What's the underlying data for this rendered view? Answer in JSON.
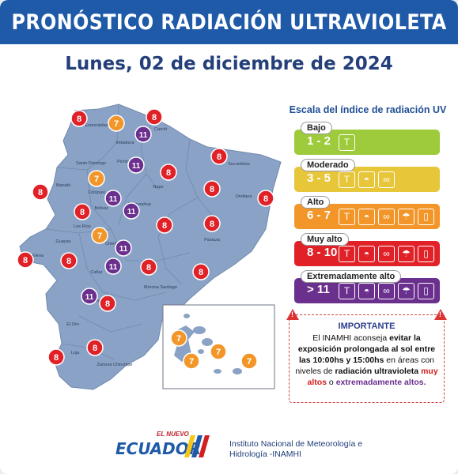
{
  "header": {
    "title": "PRONÓSTICO RADIACIÓN ULTRAVIOLETA"
  },
  "date": "Lunes, 02 de diciembre de 2024",
  "map": {
    "provinces": [
      "Esmeraldas",
      "Carchi",
      "Imbabura",
      "Santo Domingo",
      "Pichincha",
      "Sucumbíos",
      "Napo",
      "Orellana",
      "Manabí",
      "Cotopaxi",
      "Tungurahua",
      "Los Ríos",
      "Bolívar",
      "Pastaza",
      "Guayas",
      "Santa Elena",
      "Chimborazo",
      "Cañar",
      "Morona Santiago",
      "Azuay",
      "El Oro",
      "Loja",
      "Zamora Chinchipe"
    ],
    "uv_points": [
      {
        "value": "8",
        "level": "very_high"
      },
      {
        "value": "7",
        "level": "high"
      },
      {
        "value": "8",
        "level": "very_high"
      },
      {
        "value": "11",
        "level": "extreme"
      },
      {
        "value": "11",
        "level": "extreme"
      },
      {
        "value": "8",
        "level": "very_high"
      },
      {
        "value": "7",
        "level": "high"
      },
      {
        "value": "8",
        "level": "very_high"
      },
      {
        "value": "8",
        "level": "very_high"
      },
      {
        "value": "11",
        "level": "extreme"
      },
      {
        "value": "8",
        "level": "very_high"
      },
      {
        "value": "8",
        "level": "very_high"
      },
      {
        "value": "8",
        "level": "very_high"
      },
      {
        "value": "11",
        "level": "extreme"
      },
      {
        "value": "7",
        "level": "high"
      },
      {
        "value": "8",
        "level": "very_high"
      },
      {
        "value": "8",
        "level": "very_high"
      },
      {
        "value": "11",
        "level": "extreme"
      },
      {
        "value": "8",
        "level": "very_high"
      },
      {
        "value": "11",
        "level": "extreme"
      },
      {
        "value": "8",
        "level": "very_high"
      },
      {
        "value": "8",
        "level": "very_high"
      },
      {
        "value": "8",
        "level": "very_high"
      },
      {
        "value": "11",
        "level": "extreme"
      },
      {
        "value": "8",
        "level": "very_high"
      },
      {
        "value": "8",
        "level": "very_high"
      },
      {
        "value": "8",
        "level": "very_high"
      }
    ],
    "galapagos_points": [
      {
        "value": "7"
      },
      {
        "value": "7"
      },
      {
        "value": "7"
      },
      {
        "value": "7"
      }
    ]
  },
  "scale": {
    "title": "Escala del índice de radiación UV",
    "levels": [
      {
        "id": "low",
        "label": "Bajo",
        "range": "1 - 2",
        "color": "#9dcb3b",
        "icons": [
          "shirt-icon"
        ]
      },
      {
        "id": "moderate",
        "label": "Moderado",
        "range": "3 - 5",
        "color": "#e7c63a",
        "icons": [
          "shirt-icon",
          "hat-icon",
          "sunglasses-icon"
        ]
      },
      {
        "id": "high",
        "label": "Alto",
        "range": "6 - 7",
        "color": "#f3962a",
        "icons": [
          "shirt-icon",
          "hat-icon",
          "sunglasses-icon",
          "umbrella-icon",
          "sunscreen-icon"
        ]
      },
      {
        "id": "very_high",
        "label": "Muy alto",
        "range": "8 - 10",
        "color": "#e02127",
        "icons": [
          "shirt-icon",
          "hat-icon",
          "sunglasses-icon",
          "umbrella-icon",
          "sunscreen-icon"
        ]
      },
      {
        "id": "extreme",
        "label": "Extremadamente alto",
        "range": "> 11",
        "color": "#6b2f8e",
        "icons": [
          "shirt-icon",
          "hat-icon",
          "sunglasses-icon",
          "umbrella-icon",
          "sunscreen-icon"
        ]
      }
    ]
  },
  "important": {
    "title": "IMPORTANTE",
    "p1": "El INAMHI aconseja",
    "p2": "evitar la exposición prolongada al sol entre las 10:00hs y 15:00hs",
    "p3": "en áreas con niveles de",
    "p4": "radiación ultravioleta",
    "p5": "muy altos",
    "p6": "o",
    "p7": "extremadamente altos."
  },
  "footer": {
    "brand_small": "EL NUEVO",
    "brand_big": "ECUADOR",
    "institute_line1": "Instituto Nacional de Meteorología e",
    "institute_line2": "Hidrología -INAMHI"
  },
  "colors": {
    "header": "#1f5aa8",
    "map": "#8aa2c5",
    "very_high": "#e02127",
    "high": "#f3962a",
    "extreme": "#6b2f8e"
  }
}
